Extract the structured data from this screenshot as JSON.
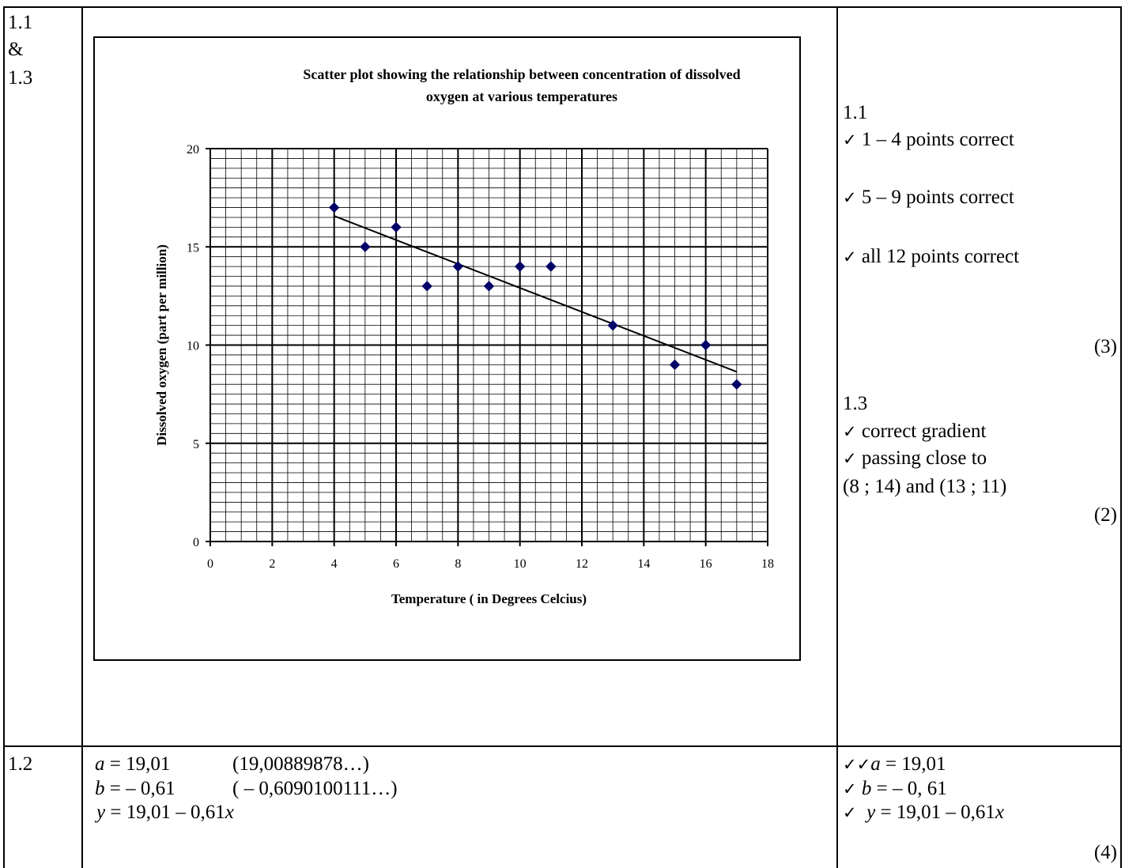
{
  "section_a": {
    "number_lines": [
      "1.1",
      "&",
      "1.3"
    ],
    "marks": {
      "q11_heading": "1.1",
      "q11_items": [
        "1 – 4 points correct",
        "5 – 9 points correct",
        "all 12 points correct"
      ],
      "q11_total": "(3)",
      "q13_heading": "1.3",
      "q13_items": [
        "correct gradient",
        "passing close to"
      ],
      "q13_continuation": "(8 ; 14) and (13 ; 11)",
      "q13_total": "(2)"
    }
  },
  "section_b": {
    "number": "1.2",
    "answer_lines": [
      {
        "lhs": "a",
        "rhs": " = 19,01",
        "note": "(19,00889878…)"
      },
      {
        "lhs": "b",
        "rhs": " = – 0,61",
        "note": "( – 0,6090100111…)"
      },
      {
        "lhs": "y",
        "rhs": " = 19,01 – 0,61",
        "var": "x"
      }
    ],
    "marks": [
      {
        "check": "✓✓",
        "lhs": "a",
        "rhs": " = 19,01"
      },
      {
        "check": "✓",
        "lhs": "b",
        "rhs": " = – 0, 61"
      },
      {
        "check": "✓",
        "lhs": "y",
        "rhs": " = 19,01 – 0,61",
        "var": "x"
      }
    ],
    "total": "(4)"
  },
  "check_symbol": "✓",
  "chart_data": {
    "type": "scatter",
    "title": "Scatter plot showing the relationship between concentration of dissolved oxygen at various temperatures",
    "title_lines": [
      "Scatter plot showing the relationship between concentration of dissolved",
      "oxygen at various temperatures"
    ],
    "xlabel": "Temperature ( in Degrees Celcius)",
    "ylabel": "Dissolved oxygen (part per million)",
    "xlim": [
      0,
      18
    ],
    "ylim": [
      0,
      20
    ],
    "x_ticks": [
      0,
      2,
      4,
      6,
      8,
      10,
      12,
      14,
      16,
      18
    ],
    "y_ticks": [
      0,
      5,
      10,
      15,
      20
    ],
    "grid": true,
    "marker_color": "#000066",
    "series": [
      {
        "x": [
          4,
          5,
          6,
          7,
          8,
          9,
          10,
          11,
          13,
          15,
          16,
          17
        ],
        "y": [
          17,
          15,
          16,
          13,
          14,
          13,
          14,
          14,
          11,
          9,
          10,
          8
        ]
      }
    ],
    "trendline": {
      "intercept": 19.01,
      "slope": -0.61,
      "x_range": [
        4,
        17
      ]
    }
  }
}
